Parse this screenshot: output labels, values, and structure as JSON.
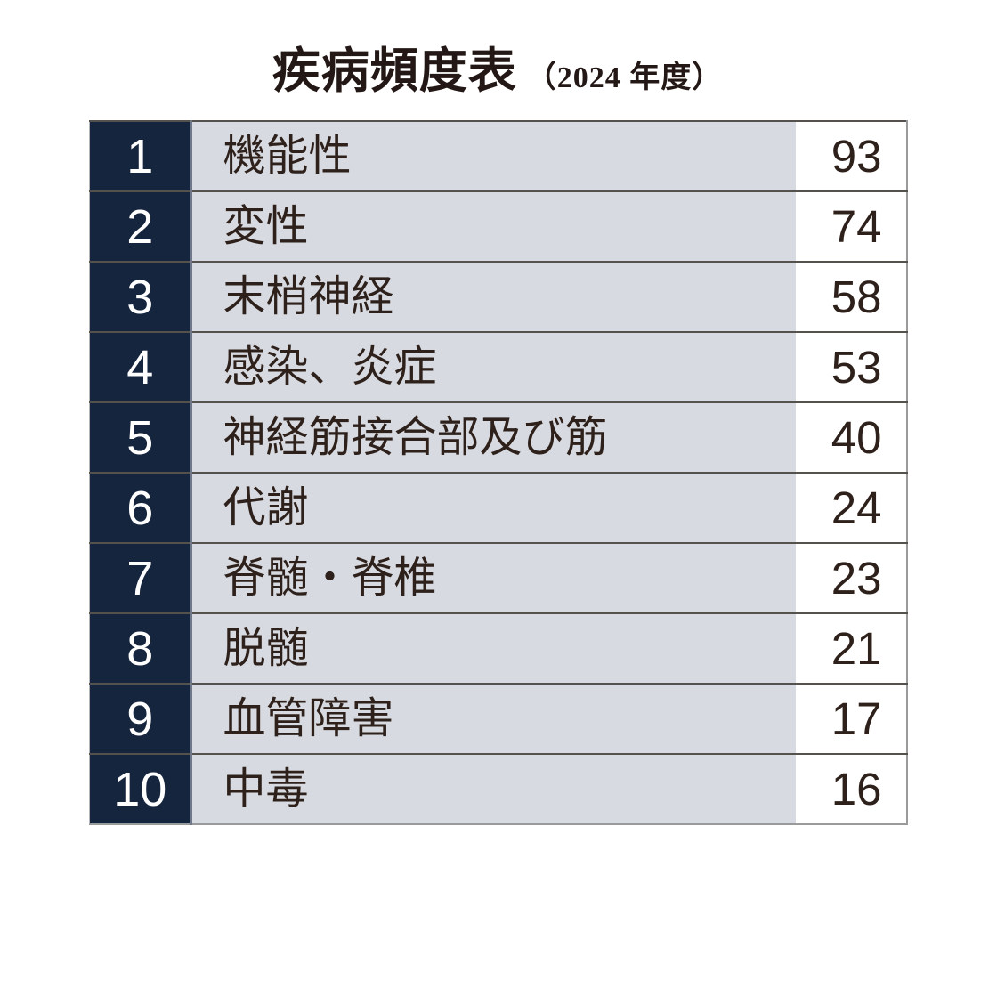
{
  "title": {
    "main": "疾病頻度表",
    "year": "（2024 年度）"
  },
  "table": {
    "rows": [
      {
        "rank": "1",
        "label": "機能性",
        "value": "93"
      },
      {
        "rank": "2",
        "label": "変性",
        "value": "74"
      },
      {
        "rank": "3",
        "label": "末梢神経",
        "value": "58"
      },
      {
        "rank": "4",
        "label": "感染、炎症",
        "value": "53"
      },
      {
        "rank": "5",
        "label": "神経筋接合部及び筋",
        "value": "40"
      },
      {
        "rank": "6",
        "label": "代謝",
        "value": "24"
      },
      {
        "rank": "7",
        "label": "脊髄・脊椎",
        "value": "23"
      },
      {
        "rank": "8",
        "label": "脱髄",
        "value": "21"
      },
      {
        "rank": "9",
        "label": "血管障害",
        "value": "17"
      },
      {
        "rank": "10",
        "label": "中毒",
        "value": "16"
      }
    ]
  },
  "colors": {
    "page_bg": "#ffffff",
    "title_text": "#231815",
    "rank_bg": "#16253e",
    "rank_text": "#ffffff",
    "label_bg": "#d7dae0",
    "body_text": "#2e211b",
    "row_line": "#55514d",
    "rank_divider": "#6f7789",
    "outer_border": "#9a9a9a"
  },
  "chart_data": {
    "type": "table",
    "title": "疾病頻度表（2024 年度）",
    "ranks": [
      1,
      2,
      3,
      4,
      5,
      6,
      7,
      8,
      9,
      10
    ],
    "categories": [
      "機能性",
      "変性",
      "末梢神経",
      "感染、炎症",
      "神経筋接合部及び筋",
      "代謝",
      "脊髄・脊椎",
      "脱髄",
      "血管障害",
      "中毒"
    ],
    "values": [
      93,
      74,
      58,
      53,
      40,
      24,
      23,
      21,
      17,
      16
    ],
    "layout": "ranked list table, rank column dark navy, category column light gray, count column white, no visible column headers"
  }
}
